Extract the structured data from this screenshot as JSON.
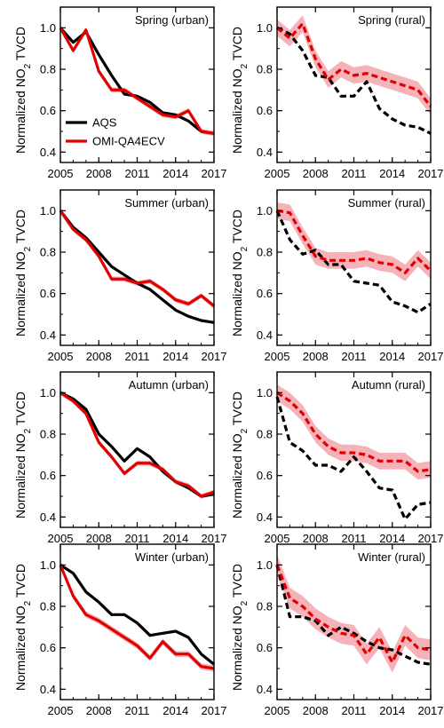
{
  "figure": {
    "ylabel_main": "Normalized NO",
    "ylabel_sub": "2",
    "ylabel_tail": " TVCD"
  },
  "chart_data": [
    {
      "type": "line",
      "title": "Spring (urban)",
      "x": [
        2005,
        2006,
        2007,
        2008,
        2009,
        2010,
        2011,
        2012,
        2013,
        2014,
        2015,
        2016,
        2017
      ],
      "xticks": [
        "2005",
        "2008",
        "2011",
        "2014",
        "2017"
      ],
      "yticks": [
        "0.4",
        "0.6",
        "0.8",
        "1.0"
      ],
      "ylim": [
        0.35,
        1.1
      ],
      "legend": [
        {
          "name": "AQS",
          "color": "#000000"
        },
        {
          "name": "OMI-QA4ECV",
          "color": "#e00000"
        }
      ],
      "series": [
        {
          "name": "AQS",
          "color": "#000000",
          "style": "solid",
          "values": [
            1.0,
            0.93,
            0.98,
            0.87,
            0.77,
            0.68,
            0.67,
            0.64,
            0.59,
            0.58,
            0.55,
            0.5,
            0.49
          ]
        },
        {
          "name": "OMI-QA4ECV",
          "color": "#e00000",
          "style": "solid",
          "values": [
            1.0,
            0.89,
            0.99,
            0.79,
            0.7,
            0.7,
            0.66,
            0.62,
            0.58,
            0.57,
            0.6,
            0.5,
            0.49
          ],
          "band": 0.012
        }
      ]
    },
    {
      "type": "line",
      "title": "Spring (rural)",
      "x": [
        2005,
        2006,
        2007,
        2008,
        2009,
        2010,
        2011,
        2012,
        2013,
        2014,
        2015,
        2016,
        2017
      ],
      "xticks": [
        "2005",
        "2008",
        "2011",
        "2014",
        "2017"
      ],
      "yticks": [
        "0.4",
        "0.6",
        "0.8",
        "1.0"
      ],
      "ylim": [
        0.35,
        1.1
      ],
      "series": [
        {
          "name": "AQS",
          "color": "#000000",
          "style": "dashed",
          "values": [
            1.0,
            0.97,
            0.89,
            0.77,
            0.76,
            0.67,
            0.67,
            0.74,
            0.61,
            0.56,
            0.53,
            0.52,
            0.49
          ]
        },
        {
          "name": "OMI-QA4ECV",
          "color": "#e00000",
          "style": "dashed",
          "values": [
            1.0,
            0.95,
            1.02,
            0.85,
            0.75,
            0.8,
            0.77,
            0.78,
            0.76,
            0.74,
            0.72,
            0.7,
            0.62
          ],
          "band": 0.04
        }
      ]
    },
    {
      "type": "line",
      "title": "Summer (urban)",
      "x": [
        2005,
        2006,
        2007,
        2008,
        2009,
        2010,
        2011,
        2012,
        2013,
        2014,
        2015,
        2016,
        2017
      ],
      "xticks": [
        "2005",
        "2008",
        "2011",
        "2014",
        "2017"
      ],
      "yticks": [
        "0.4",
        "0.6",
        "0.8",
        "1.0"
      ],
      "ylim": [
        0.35,
        1.1
      ],
      "series": [
        {
          "name": "AQS",
          "color": "#000000",
          "style": "solid",
          "values": [
            1.0,
            0.92,
            0.87,
            0.8,
            0.73,
            0.69,
            0.65,
            0.62,
            0.57,
            0.52,
            0.49,
            0.47,
            0.46
          ]
        },
        {
          "name": "OMI-QA4ECV",
          "color": "#e00000",
          "style": "solid",
          "values": [
            1.0,
            0.91,
            0.86,
            0.78,
            0.67,
            0.67,
            0.65,
            0.66,
            0.62,
            0.57,
            0.55,
            0.59,
            0.54
          ],
          "band": 0.012
        }
      ]
    },
    {
      "type": "line",
      "title": "Summer (rural)",
      "x": [
        2005,
        2006,
        2007,
        2008,
        2009,
        2010,
        2011,
        2012,
        2013,
        2014,
        2015,
        2016,
        2017
      ],
      "xticks": [
        "2005",
        "2008",
        "2011",
        "2014",
        "2017"
      ],
      "yticks": [
        "0.4",
        "0.6",
        "0.8",
        "1.0"
      ],
      "ylim": [
        0.35,
        1.1
      ],
      "series": [
        {
          "name": "AQS",
          "color": "#000000",
          "style": "dashed",
          "values": [
            1.0,
            0.86,
            0.79,
            0.81,
            0.74,
            0.74,
            0.66,
            0.65,
            0.64,
            0.56,
            0.54,
            0.51,
            0.55
          ]
        },
        {
          "name": "OMI-QA4ECV",
          "color": "#e00000",
          "style": "dashed",
          "values": [
            1.0,
            0.99,
            0.88,
            0.78,
            0.76,
            0.76,
            0.76,
            0.77,
            0.75,
            0.74,
            0.7,
            0.77,
            0.71
          ],
          "band": 0.04
        }
      ]
    },
    {
      "type": "line",
      "title": "Autumn (urban)",
      "x": [
        2005,
        2006,
        2007,
        2008,
        2009,
        2010,
        2011,
        2012,
        2013,
        2014,
        2015,
        2016,
        2017
      ],
      "xticks": [
        "2005",
        "2008",
        "2011",
        "2014",
        "2017"
      ],
      "yticks": [
        "0.4",
        "0.6",
        "0.8",
        "1.0"
      ],
      "ylim": [
        0.35,
        1.1
      ],
      "series": [
        {
          "name": "AQS",
          "color": "#000000",
          "style": "solid",
          "values": [
            1.0,
            0.97,
            0.92,
            0.8,
            0.74,
            0.67,
            0.73,
            0.69,
            0.62,
            0.57,
            0.54,
            0.5,
            0.51
          ]
        },
        {
          "name": "OMI-QA4ECV",
          "color": "#e00000",
          "style": "solid",
          "values": [
            1.0,
            0.96,
            0.9,
            0.76,
            0.69,
            0.61,
            0.66,
            0.66,
            0.63,
            0.57,
            0.55,
            0.5,
            0.52
          ],
          "band": 0.012
        }
      ]
    },
    {
      "type": "line",
      "title": "Autumn (rural)",
      "x": [
        2005,
        2006,
        2007,
        2008,
        2009,
        2010,
        2011,
        2012,
        2013,
        2014,
        2015,
        2016,
        2017
      ],
      "xticks": [
        "2005",
        "2008",
        "2011",
        "2014",
        "2017"
      ],
      "yticks": [
        "0.4",
        "0.6",
        "0.8",
        "1.0"
      ],
      "ylim": [
        0.35,
        1.1
      ],
      "series": [
        {
          "name": "AQS",
          "color": "#000000",
          "style": "dashed",
          "values": [
            0.98,
            0.76,
            0.72,
            0.65,
            0.65,
            0.62,
            0.69,
            0.62,
            0.54,
            0.53,
            0.39,
            0.46,
            0.47
          ]
        },
        {
          "name": "OMI-QA4ECV",
          "color": "#e00000",
          "style": "dashed",
          "values": [
            1.0,
            0.96,
            0.9,
            0.8,
            0.74,
            0.71,
            0.71,
            0.7,
            0.67,
            0.67,
            0.67,
            0.62,
            0.63
          ],
          "band": 0.04
        }
      ]
    },
    {
      "type": "line",
      "title": "Winter (urban)",
      "x": [
        2005,
        2006,
        2007,
        2008,
        2009,
        2010,
        2011,
        2012,
        2013,
        2014,
        2015,
        2016,
        2017
      ],
      "xticks": [
        "2005",
        "2008",
        "2011",
        "2014",
        "2017"
      ],
      "yticks": [
        "0.4",
        "0.6",
        "0.8",
        "1.0"
      ],
      "ylim": [
        0.35,
        1.1
      ],
      "series": [
        {
          "name": "AQS",
          "color": "#000000",
          "style": "solid",
          "values": [
            1.0,
            0.96,
            0.87,
            0.82,
            0.76,
            0.76,
            0.72,
            0.66,
            0.67,
            0.68,
            0.65,
            0.57,
            0.52
          ]
        },
        {
          "name": "OMI-QA4ECV",
          "color": "#e00000",
          "style": "solid",
          "values": [
            1.0,
            0.85,
            0.76,
            0.73,
            0.69,
            0.65,
            0.61,
            0.55,
            0.63,
            0.57,
            0.57,
            0.51,
            0.5
          ],
          "band": 0.015
        }
      ]
    },
    {
      "type": "line",
      "title": "Winter (rural)",
      "x": [
        2005,
        2006,
        2007,
        2008,
        2009,
        2010,
        2011,
        2012,
        2013,
        2014,
        2015,
        2016,
        2017
      ],
      "xticks": [
        "2005",
        "2008",
        "2011",
        "2014",
        "2017"
      ],
      "yticks": [
        "0.4",
        "0.6",
        "0.8",
        "1.0"
      ],
      "ylim": [
        0.35,
        1.1
      ],
      "series": [
        {
          "name": "AQS",
          "color": "#000000",
          "style": "dashed",
          "values": [
            1.0,
            0.75,
            0.75,
            0.73,
            0.66,
            0.7,
            0.67,
            0.63,
            0.6,
            0.59,
            0.56,
            0.53,
            0.52
          ]
        },
        {
          "name": "OMI-QA4ECV",
          "color": "#e00000",
          "style": "dashed",
          "values": [
            1.0,
            0.84,
            0.8,
            0.74,
            0.7,
            0.67,
            0.66,
            0.57,
            0.65,
            0.53,
            0.66,
            0.6,
            0.59
          ],
          "band": 0.05
        }
      ]
    }
  ]
}
